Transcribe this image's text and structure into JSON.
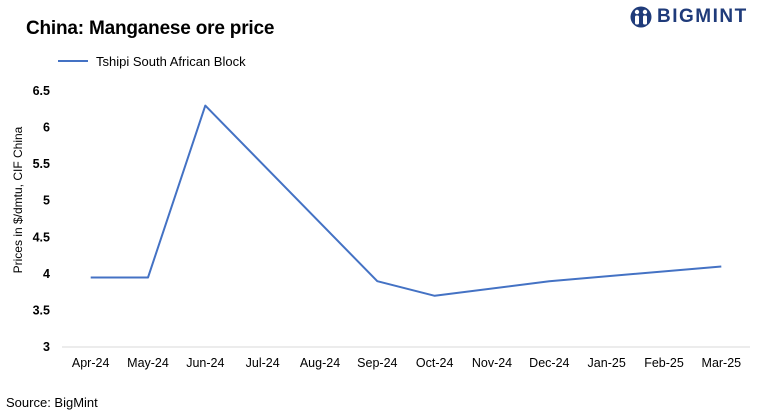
{
  "header": {
    "title": "China: Manganese ore price"
  },
  "brand": {
    "logo_text": "BIGMINT",
    "color": "#1f3b7a"
  },
  "footer": {
    "source": "Source: BigMint"
  },
  "chart_data": {
    "type": "line",
    "title": "China: Manganese ore price",
    "xlabel": "",
    "ylabel": "Prices in $/dmtu, CIF China",
    "ylim": [
      3,
      6.5
    ],
    "yticks": [
      3,
      3.5,
      4,
      4.5,
      5,
      5.5,
      6,
      6.5
    ],
    "ytick_labels": [
      "3",
      "3.5",
      "4",
      "4.5",
      "5",
      "5.5",
      "6",
      "6.5"
    ],
    "grid": false,
    "legend": "top-left",
    "categories": [
      "Apr-24",
      "May-24",
      "Jun-24",
      "Jul-24",
      "Aug-24",
      "Sep-24",
      "Oct-24",
      "Nov-24",
      "Dec-24",
      "Jan-25",
      "Feb-25",
      "Mar-25"
    ],
    "series": [
      {
        "name": "Tshipi South African Block",
        "color": "#4472c4",
        "values": [
          3.95,
          3.95,
          6.3,
          null,
          null,
          3.9,
          3.7,
          null,
          3.9,
          null,
          null,
          4.1
        ]
      }
    ]
  }
}
